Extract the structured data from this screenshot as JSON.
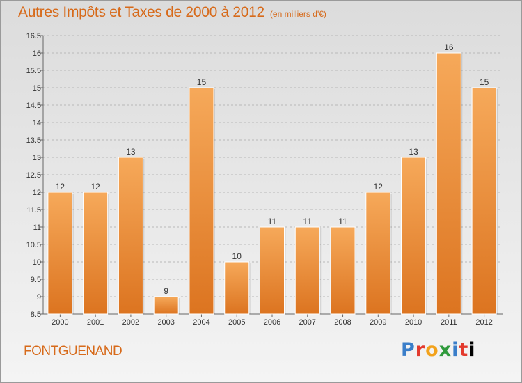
{
  "header": {
    "title": "Autres Impôts et Taxes de 2000 à 2012",
    "unit": "(en milliers d'€)"
  },
  "footer": {
    "town": "FONTGUENAND",
    "logo": [
      "P",
      "r",
      "o",
      "x",
      "i",
      "t",
      "i"
    ]
  },
  "colors": {
    "accent": "#d76a1a",
    "bar_top": "#f6a95a",
    "bar_bottom": "#dc7420",
    "grid": "#b8b8b8"
  },
  "chart_data": {
    "type": "bar",
    "title": "Autres Impôts et Taxes de 2000 à 2012",
    "xlabel": "",
    "ylabel": "",
    "categories": [
      "2000",
      "2001",
      "2002",
      "2003",
      "2004",
      "2005",
      "2006",
      "2007",
      "2008",
      "2009",
      "2010",
      "2011",
      "2012"
    ],
    "values": [
      12,
      12,
      13,
      9,
      15,
      10,
      11,
      11,
      11,
      12,
      13,
      16,
      15
    ],
    "ylim": [
      8.5,
      16.5
    ],
    "yticks": [
      8.5,
      9,
      9.5,
      10,
      10.5,
      11,
      11.5,
      12,
      12.5,
      13,
      13.5,
      14,
      14.5,
      15,
      15.5,
      16,
      16.5
    ],
    "grid": true,
    "legend": "none"
  }
}
